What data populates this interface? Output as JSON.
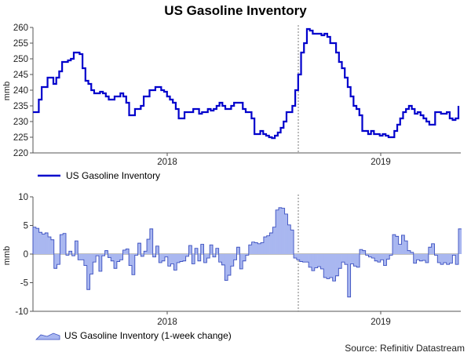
{
  "title": "US Gasoline Inventory",
  "source": "Source: Refinitiv Datastream",
  "colors": {
    "line": "#0000cc",
    "fill": "#a9b7f0",
    "fillStroke": "#3a4fc0",
    "grid": "#888888",
    "axis": "#555555",
    "dashed": "#7a7a7a"
  },
  "chart_data": [
    {
      "type": "line",
      "ylabel": "mmb",
      "ylim": [
        220,
        260
      ],
      "yticks": [
        220,
        225,
        230,
        235,
        240,
        245,
        250,
        255,
        260
      ],
      "xtick_labels": [
        "2018",
        "2019"
      ],
      "legend": [
        "US Gasoline Inventory"
      ],
      "legend_position": "bottom-left",
      "grid": "vertical dashed year separators",
      "series": [
        {
          "name": "US Gasoline Inventory",
          "values": [
            233,
            233,
            237,
            241,
            241,
            244,
            244,
            242,
            244,
            246,
            249,
            249,
            249.5,
            250,
            252,
            252,
            251.5,
            247,
            243,
            242,
            240,
            239,
            239,
            239.5,
            239,
            238,
            237,
            237,
            238,
            238,
            239,
            238,
            236,
            232,
            232,
            234,
            234,
            235,
            238,
            238,
            240,
            240,
            241,
            241,
            240,
            239.5,
            238,
            237,
            236,
            234,
            231,
            231,
            233,
            233,
            233,
            234,
            234,
            232.5,
            233,
            233,
            234,
            233.5,
            234,
            235,
            236,
            235,
            234,
            234,
            235,
            236,
            236,
            236,
            234,
            233,
            233,
            231,
            226,
            226,
            227,
            226,
            225.5,
            225,
            224.7,
            225.5,
            226.5,
            228,
            230,
            233,
            233,
            235,
            240,
            245,
            252,
            255,
            259.5,
            259,
            258,
            258,
            258,
            257.5,
            258,
            257,
            255,
            255,
            252,
            249,
            247,
            244,
            241,
            238,
            235,
            234,
            232,
            227,
            227,
            226,
            227,
            226,
            226,
            225.5,
            226,
            225.5,
            225,
            225,
            227,
            229,
            231,
            233,
            234,
            235,
            234,
            232.5,
            233,
            232,
            231,
            230,
            229,
            229,
            233,
            233,
            232.5,
            232.5,
            233,
            231,
            230.5,
            231,
            235
          ]
        }
      ]
    },
    {
      "type": "area",
      "ylabel": "mmb",
      "ylim": [
        -10,
        10
      ],
      "yticks": [
        -10,
        -5,
        0,
        5,
        10
      ],
      "xtick_labels": [
        "2018",
        "2019"
      ],
      "legend": [
        "US Gasoline Inventory (1-week change)"
      ],
      "legend_position": "bottom-left",
      "grid": "vertical dashed year separators",
      "series": [
        {
          "name": "US Gasoline Inventory (1-week change)",
          "values": [
            4.7,
            4.5,
            3.8,
            3.5,
            3.7,
            3,
            2.5,
            -2.5,
            -1.8,
            3.4,
            3.6,
            -0.2,
            0.5,
            -0.3,
            2.3,
            -1,
            -1,
            -2,
            -6.2,
            -3.5,
            -1.4,
            -0.3,
            -3,
            -0.3,
            0.6,
            -0.6,
            -1.2,
            -2.5,
            -1.3,
            -1,
            0.7,
            0.9,
            -2,
            -3.6,
            -0.2,
            1.9,
            -0.4,
            0.5,
            2.6,
            4.4,
            -0.5,
            1.4,
            -1.5,
            -1.2,
            -0.5,
            -2.1,
            -1.7,
            -2.8,
            -1.5,
            -1.3,
            -1.2,
            -0.4,
            1.5,
            -1.7,
            1,
            -1.2,
            1.7,
            -1.5,
            -0.7,
            1.6,
            -0.5,
            1,
            -1.4,
            -1.9,
            -4.6,
            -3.7,
            -2.1,
            -1,
            1.2,
            -2.6,
            -1.2,
            -0.2,
            1.6,
            2.1,
            2,
            1.8,
            2,
            3,
            3.2,
            3.7,
            4.7,
            7.7,
            8.1,
            8,
            7,
            5.1,
            4.2,
            -0.7,
            -1,
            -1.3,
            -1.4,
            -1.4,
            -2.3,
            -2.9,
            -2.4,
            -2.2,
            -2.6,
            -4.1,
            -4.3,
            -4.1,
            -4.7,
            -3.8,
            -2.5,
            -1.4,
            -1.8,
            -7.5,
            -1.7,
            -2.1,
            -2.3,
            0.8,
            0.6,
            -0.2,
            -0.5,
            -0.7,
            -1.2,
            -1.4,
            -1,
            -2,
            -0.9,
            -0.2,
            3.4,
            3.1,
            1.7,
            3.3,
            2.3,
            0.6,
            0.3,
            -1.6,
            -1,
            -1.2,
            -1.1,
            -1.5,
            1.2,
            1.8,
            -0.2,
            -1.5,
            -1.8,
            -1.5,
            -1.8,
            -1.6,
            -0.2,
            -1.8,
            4.4
          ]
        }
      ]
    }
  ]
}
